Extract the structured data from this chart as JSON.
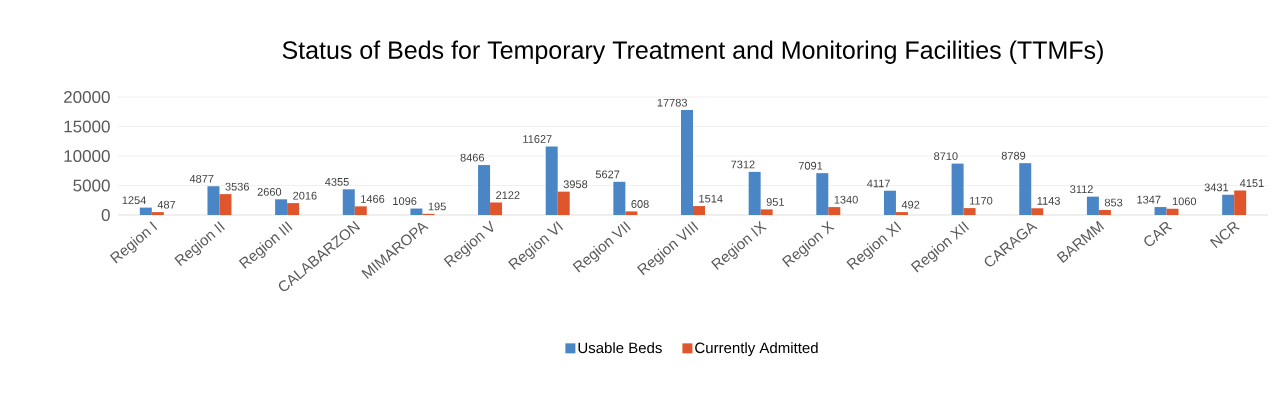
{
  "chart_data": {
    "type": "bar",
    "title": "Status of Beds for Temporary Treatment and Monitoring Facilities (TTMFs)",
    "categories": [
      "Region I",
      "Region II",
      "Region III",
      "CALABARZON",
      "MIMAROPA",
      "Region V",
      "Region VI",
      "Region VII",
      "Region VIII",
      "Region IX",
      "Region X",
      "Region XI",
      "Region XII",
      "CARAGA",
      "BARMM",
      "CAR",
      "NCR"
    ],
    "series": [
      {
        "name": "Usable Beds",
        "color": "#4a86c5",
        "values": [
          1254,
          4877,
          2660,
          4355,
          1096,
          8466,
          11627,
          5627,
          17783,
          7312,
          7091,
          4117,
          8710,
          8789,
          3112,
          1347,
          3431
        ]
      },
      {
        "name": "Currently Admitted",
        "color": "#e0562c",
        "values": [
          487,
          3536,
          2016,
          1466,
          195,
          2122,
          3958,
          608,
          1514,
          951,
          1340,
          492,
          1170,
          1143,
          853,
          1060,
          4151
        ]
      }
    ],
    "ylim": [
      0,
      20000
    ],
    "yticks": [
      0,
      5000,
      10000,
      15000,
      20000
    ],
    "grid": "y",
    "legend": "bottom",
    "data_labels": true
  }
}
